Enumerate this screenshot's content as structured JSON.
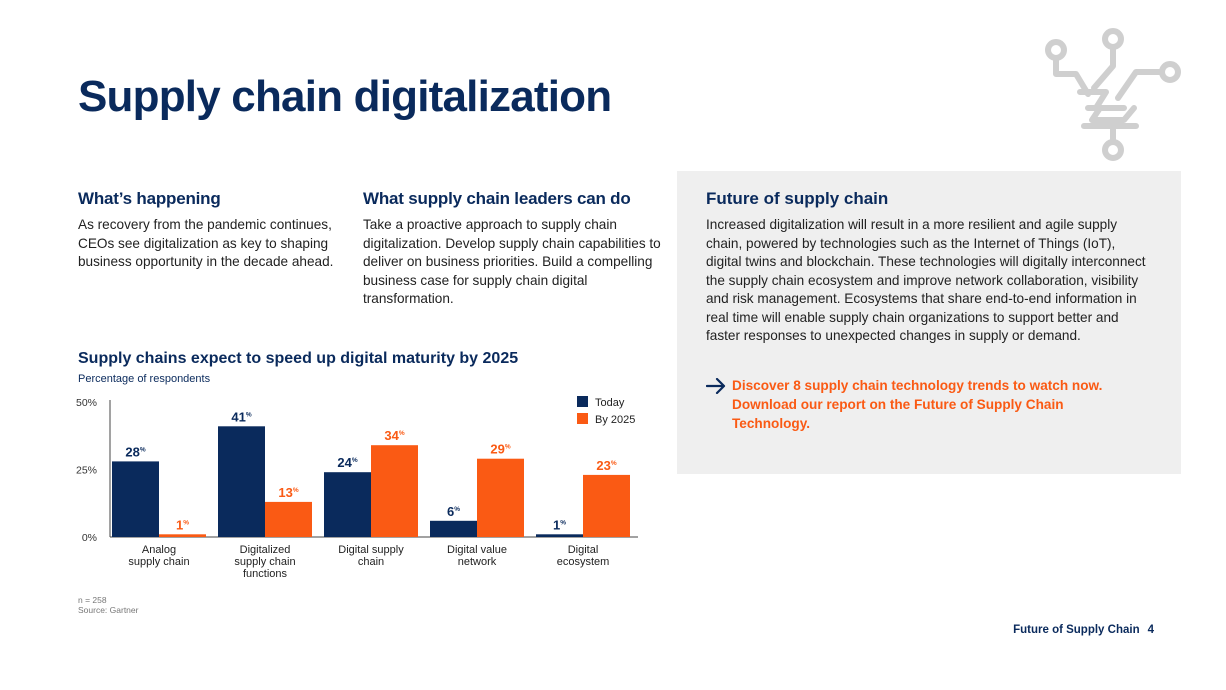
{
  "page": {
    "title": "Supply chain digitalization",
    "footer_label": "Future of Supply Chain",
    "page_number": "4",
    "decoration_icon": "circuit-icon"
  },
  "columns": [
    {
      "heading": "What’s happening",
      "body": "As recovery from the pandemic continues, CEOs see digitalization as key to shaping business opportunity in the decade ahead."
    },
    {
      "heading": "What supply chain leaders can do",
      "body": "Take a proactive approach to supply chain digitalization. Develop supply chain capabilities to deliver on business priorities. Build a compelling business case for supply chain digital transformation."
    }
  ],
  "panel": {
    "heading": "Future of supply chain",
    "body": "Increased digitalization will result in a more resilient and agile supply chain, powered by technologies such as the Internet of Things (IoT), digital twins and blockchain. These technologies will digitally interconnect the supply chain ecosystem and improve network collaboration, visibility and risk management. Ecosystems that share end-to-end information in real time will enable supply chain organizations to support better and faster responses to unexpected changes in supply or demand.",
    "cta_icon": "arrow-right-icon",
    "cta_text": "Discover 8 supply chain technology trends to watch now. Download our report on the Future of Supply Chain Technology."
  },
  "chart_data": {
    "type": "bar",
    "title": "Supply chains expect to speed up digital maturity by 2025",
    "subtitle": "Percentage of respondents",
    "categories": [
      [
        "Analog",
        "supply chain"
      ],
      [
        "Digitalized",
        "supply chain",
        "functions"
      ],
      [
        "Digital supply",
        "chain"
      ],
      [
        "Digital value",
        "network"
      ],
      [
        "Digital",
        "ecosystem"
      ]
    ],
    "series": [
      {
        "name": "Today",
        "color": "#0a2a5c",
        "values": [
          28,
          41,
          24,
          6,
          1
        ]
      },
      {
        "name": "By 2025",
        "color": "#fa5a14",
        "values": [
          1,
          13,
          34,
          29,
          23
        ]
      }
    ],
    "ylim": [
      0,
      50
    ],
    "yticks": [
      0,
      25,
      50
    ],
    "ytick_labels": [
      "0%",
      "25%",
      "50%"
    ],
    "value_suffix": "%",
    "legend_position": "top-right",
    "grid": false,
    "notes": [
      "n = 258",
      "Source: Gartner"
    ]
  }
}
